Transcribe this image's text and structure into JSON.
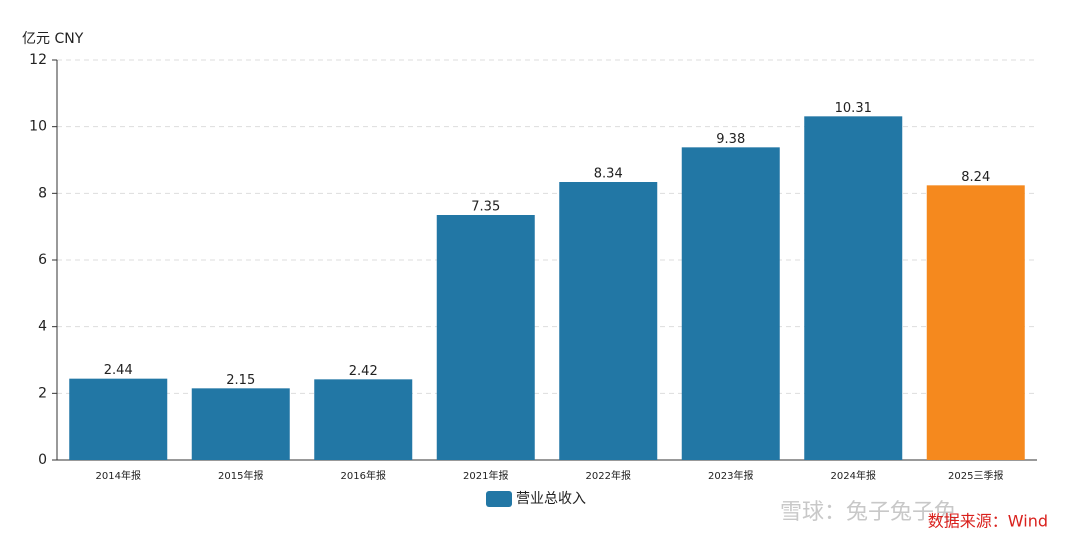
{
  "chart_data": {
    "type": "bar",
    "y_unit_label": "亿元  CNY",
    "categories": [
      "2014年报",
      "2015年报",
      "2016年报",
      "2021年报",
      "2022年报",
      "2023年报",
      "2024年报",
      "2025三季报"
    ],
    "series": [
      {
        "name": "营业总收入",
        "color": "#2277a5",
        "values": [
          2.44,
          2.15,
          2.42,
          7.35,
          8.34,
          9.38,
          10.31,
          8.24
        ],
        "point_colors": [
          "#2277a5",
          "#2277a5",
          "#2277a5",
          "#2277a5",
          "#2277a5",
          "#2277a5",
          "#2277a5",
          "#f5891e"
        ]
      }
    ],
    "ylim": [
      0,
      12
    ],
    "yticks": [
      0,
      2,
      4,
      6,
      8,
      10,
      12
    ],
    "grid": true,
    "source": "数据来源：Wind",
    "watermark": "雪球：兔子兔子兔"
  }
}
